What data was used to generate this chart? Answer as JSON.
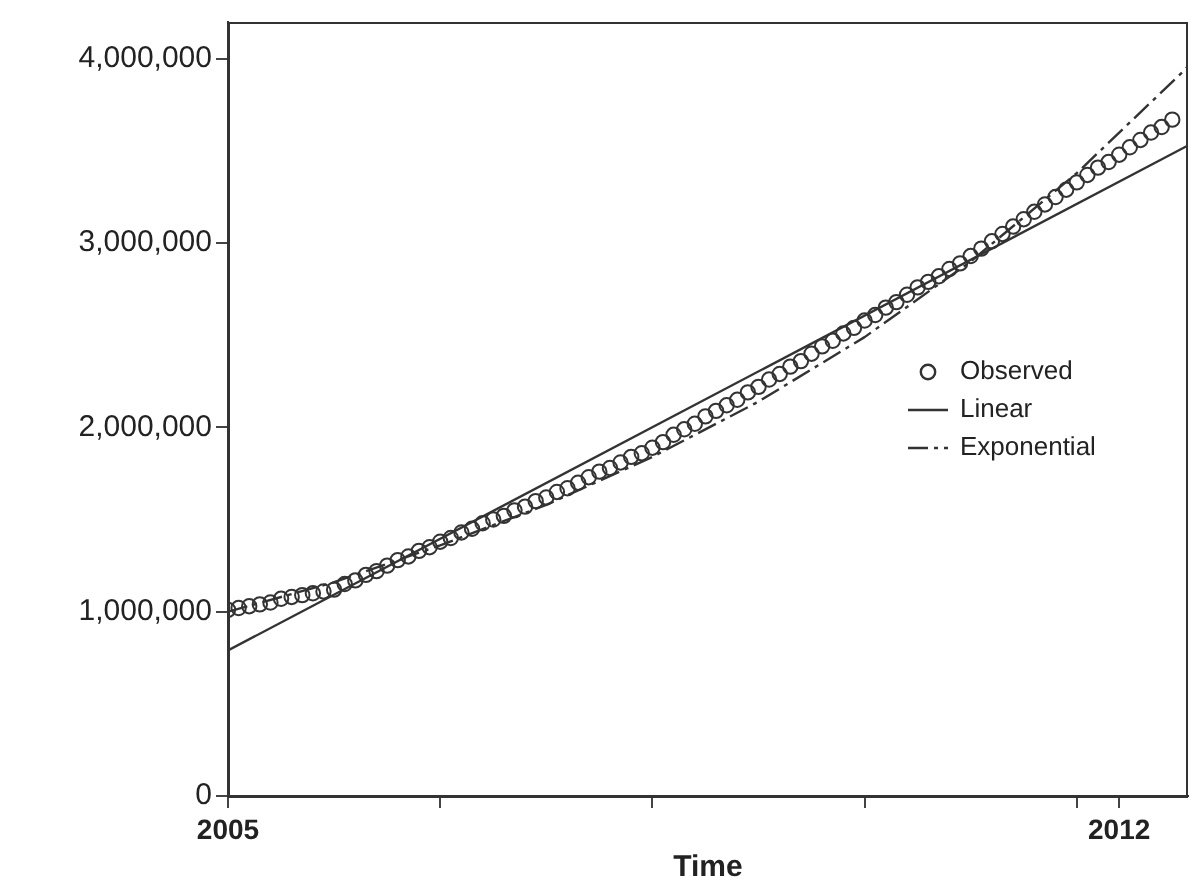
{
  "chart_data": {
    "type": "scatter",
    "xlabel": "Time",
    "x": [
      "2005-01",
      "2005-02",
      "2005-03",
      "2005-04",
      "2005-05",
      "2005-06",
      "2005-07",
      "2005-08",
      "2005-09",
      "2005-10",
      "2005-11",
      "2005-12",
      "2006-01",
      "2006-02",
      "2006-03",
      "2006-04",
      "2006-05",
      "2006-06",
      "2006-07",
      "2006-08",
      "2006-09",
      "2006-10",
      "2006-11",
      "2006-12",
      "2007-01",
      "2007-02",
      "2007-03",
      "2007-04",
      "2007-05",
      "2007-06",
      "2007-07",
      "2007-08",
      "2007-09",
      "2007-10",
      "2007-11",
      "2007-12",
      "2008-01",
      "2008-02",
      "2008-03",
      "2008-04",
      "2008-05",
      "2008-06",
      "2008-07",
      "2008-08",
      "2008-09",
      "2008-10",
      "2008-11",
      "2008-12",
      "2009-01",
      "2009-02",
      "2009-03",
      "2009-04",
      "2009-05",
      "2009-06",
      "2009-07",
      "2009-08",
      "2009-09",
      "2009-10",
      "2009-11",
      "2009-12",
      "2010-01",
      "2010-02",
      "2010-03",
      "2010-04",
      "2010-05",
      "2010-06",
      "2010-07",
      "2010-08",
      "2010-09",
      "2010-10",
      "2010-11",
      "2010-12",
      "2011-01",
      "2011-02",
      "2011-03",
      "2011-04",
      "2011-05",
      "2011-06",
      "2011-07",
      "2011-08",
      "2011-09",
      "2011-10",
      "2011-11",
      "2011-12",
      "2012-01",
      "2012-02",
      "2012-03",
      "2012-04",
      "2012-05",
      "2012-06"
    ],
    "series": [
      {
        "name": "Observed",
        "color": "#333333",
        "marker": "circle",
        "values": [
          1010000,
          1020000,
          1030000,
          1040000,
          1050000,
          1070000,
          1080000,
          1090000,
          1100000,
          1110000,
          1120000,
          1150000,
          1170000,
          1200000,
          1220000,
          1250000,
          1280000,
          1300000,
          1330000,
          1350000,
          1380000,
          1400000,
          1430000,
          1450000,
          1480000,
          1500000,
          1520000,
          1550000,
          1570000,
          1600000,
          1620000,
          1650000,
          1670000,
          1700000,
          1730000,
          1760000,
          1780000,
          1810000,
          1840000,
          1860000,
          1890000,
          1920000,
          1960000,
          1990000,
          2020000,
          2060000,
          2090000,
          2120000,
          2150000,
          2190000,
          2220000,
          2260000,
          2290000,
          2330000,
          2360000,
          2400000,
          2440000,
          2470000,
          2510000,
          2540000,
          2580000,
          2610000,
          2650000,
          2680000,
          2720000,
          2760000,
          2790000,
          2820000,
          2860000,
          2890000,
          2930000,
          2970000,
          3010000,
          3050000,
          3090000,
          3130000,
          3170000,
          3210000,
          3250000,
          3290000,
          3330000,
          3370000,
          3410000,
          3440000,
          3480000,
          3520000,
          3560000,
          3600000,
          3630000,
          3670000
        ]
      },
      {
        "name": "Linear",
        "type": "line",
        "color": "#333333",
        "marker": "none",
        "line_style": "solid",
        "x": [
          "2005-01",
          "2012-07-16"
        ],
        "values": [
          790000,
          3530000
        ]
      },
      {
        "name": "Exponential",
        "type": "line",
        "color": "#333333",
        "marker": "none",
        "line_style": "dashed",
        "x": [
          "2005-01",
          "2005-11",
          "2006-09",
          "2007-07",
          "2008-05",
          "2009-03",
          "2010-01",
          "2010-11",
          "2011-09",
          "2012-07",
          "2012-07-16"
        ],
        "values": [
          1000000,
          1160000,
          1360000,
          1580000,
          1840000,
          2140000,
          2490000,
          2900000,
          3380000,
          3930000,
          3960000
        ]
      }
    ],
    "xlim": [
      "2005-01",
      "2012-07-16"
    ],
    "xticks": [
      {
        "value": "2005-01",
        "label": "2005"
      },
      {
        "value": "2006-09",
        "label": null
      },
      {
        "value": "2008-05",
        "label": null
      },
      {
        "value": "2010-01",
        "label": null
      },
      {
        "value": "2011-09",
        "label": null
      },
      {
        "value": "2012-01",
        "label": "2012"
      }
    ],
    "ylim": [
      0,
      4200000
    ],
    "yticks": [
      {
        "value": 0,
        "label": "0"
      },
      {
        "value": 1000000,
        "label": "1,000,000"
      },
      {
        "value": 2000000,
        "label": "2,000,000"
      },
      {
        "value": 3000000,
        "label": "3,000,000"
      },
      {
        "value": 4000000,
        "label": "4,000,000"
      }
    ],
    "grid": false,
    "legend": "right"
  }
}
